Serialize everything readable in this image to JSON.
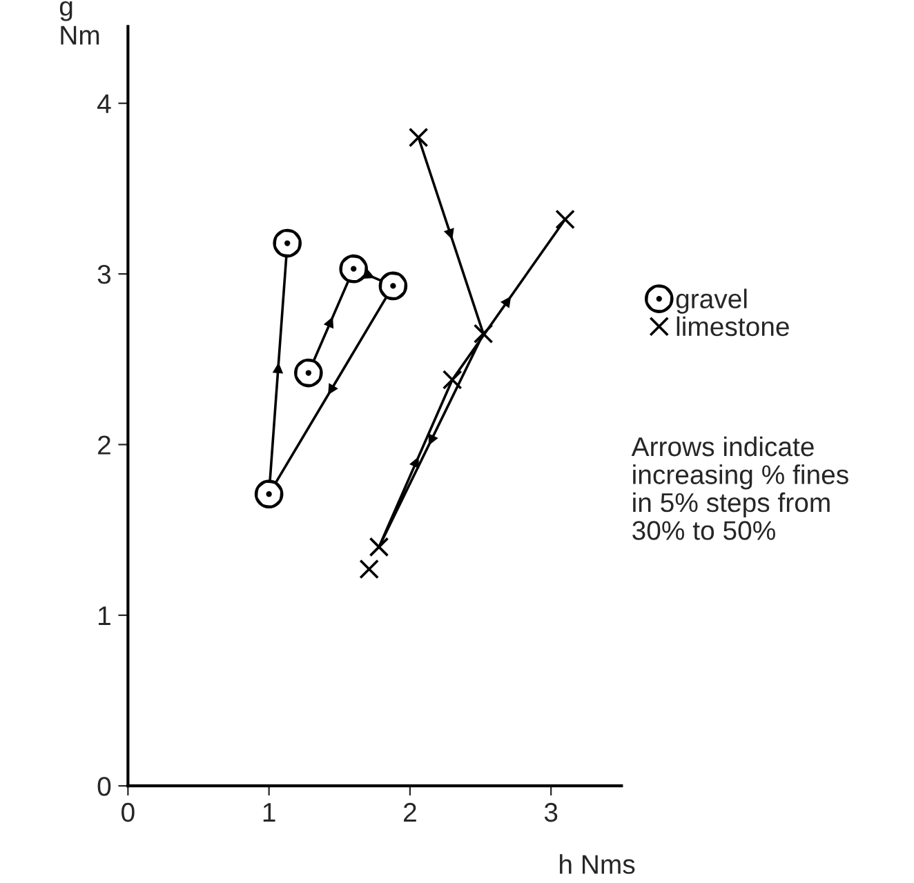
{
  "chart_data": {
    "type": "line",
    "xlabel": "h Nms",
    "ylabel": "g\nNm",
    "xlim": [
      0,
      3.5
    ],
    "ylim": [
      0,
      4.45
    ],
    "xticks": [
      0,
      1,
      2,
      3
    ],
    "yticks": [
      0,
      1,
      2,
      3,
      4
    ],
    "grid": false,
    "legend": "right",
    "line_style": "solid",
    "series": [
      {
        "name": "gravel",
        "color": "#000000",
        "marker": "circle",
        "x": [
          1.28,
          1.6,
          1.88,
          1.0,
          1.13
        ],
        "values": [
          2.42,
          3.03,
          2.93,
          1.71,
          3.18
        ]
      },
      {
        "name": "limestone",
        "color": "#000000",
        "marker": "cross",
        "x": [
          2.06,
          2.52,
          1.78,
          2.3,
          3.1
        ],
        "values": [
          3.8,
          2.65,
          1.4,
          2.38,
          3.32
        ]
      },
      {
        "type": "scatter",
        "color": "#000000",
        "marker": "cross",
        "x": [
          1.71
        ],
        "values": [
          1.27
        ]
      }
    ],
    "annotations": [
      "Arrows indicate\nincreasing % fines\nin 5% steps from\n30% to 50%"
    ]
  }
}
